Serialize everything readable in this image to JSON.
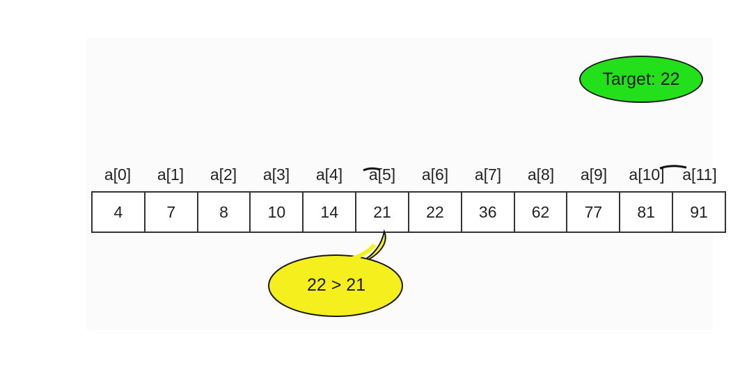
{
  "target": {
    "label": "Target: 22",
    "color": "#22e019"
  },
  "array": {
    "indices": [
      "a[0]",
      "a[1]",
      "a[2]",
      "a[3]",
      "a[4]",
      "a[5]",
      "a[6]",
      "a[7]",
      "a[8]",
      "a[9]",
      "a[10]",
      "a[11]"
    ],
    "values": [
      "4",
      "7",
      "8",
      "10",
      "14",
      "21",
      "22",
      "36",
      "62",
      "77",
      "81",
      "91"
    ]
  },
  "comparison": {
    "text": "22  > 21",
    "color": "#f5ef1e"
  }
}
